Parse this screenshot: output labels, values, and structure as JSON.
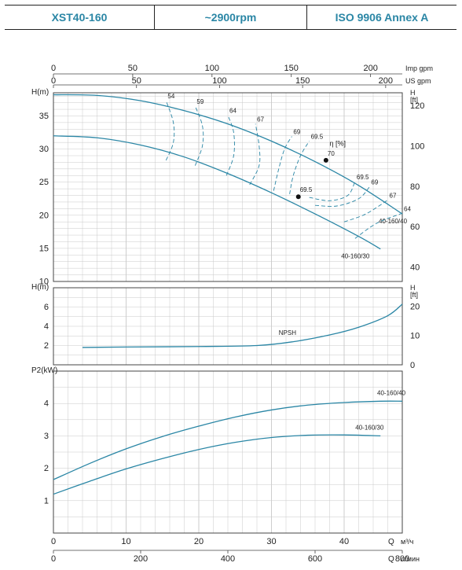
{
  "header": {
    "model": "XST40-160",
    "speed": "~2900rpm",
    "standard": "ISO 9906   Annex A"
  },
  "colors": {
    "curve": "#2a86a5",
    "grid": "#c9c9c9",
    "axis": "#444444",
    "text": "#222222"
  },
  "top_axes": {
    "imp_gpm": {
      "label": "Imp gpm",
      "ticks": [
        0,
        50,
        100,
        150,
        200
      ],
      "max": 220
    },
    "us_gpm": {
      "label": "US gpm",
      "ticks": [
        0,
        50,
        100,
        150,
        200
      ],
      "max": 210
    }
  },
  "bottom_axes": {
    "m3h": {
      "label_q": "Q",
      "label_unit": "м³/ч",
      "ticks": [
        0,
        10,
        20,
        30,
        40
      ]
    },
    "lmin": {
      "label_q": "Q",
      "label_unit": "л/мин",
      "ticks": [
        0,
        200,
        400,
        600,
        800
      ]
    }
  },
  "chart_data": [
    {
      "type": "line",
      "name": "head",
      "ylabel": "H(m)",
      "y2label": "H",
      "y2unit": "[ft]",
      "xlim": [
        0,
        48
      ],
      "ylim": [
        10,
        38.5
      ],
      "yticks": [
        10,
        15,
        20,
        25,
        30,
        35
      ],
      "y2ticks": [
        40,
        60,
        80,
        100,
        120
      ],
      "grid": true,
      "series": [
        {
          "name": "40-160/40",
          "x": [
            0,
            6,
            12,
            18,
            24,
            30,
            36,
            42,
            48
          ],
          "y": [
            38.2,
            38.1,
            37.3,
            35.8,
            33.8,
            31.2,
            28.1,
            24.5,
            20.2
          ]
        },
        {
          "name": "40-160/30",
          "x": [
            0,
            6,
            12,
            18,
            24,
            30,
            36,
            42,
            45
          ],
          "y": [
            32.0,
            31.7,
            30.6,
            28.8,
            26.3,
            23.4,
            20.2,
            16.8,
            14.9
          ]
        }
      ],
      "efficiency_label": "η [%]",
      "efficiency_curves": [
        {
          "label": "54",
          "x": [
            15.5,
            16.5,
            16.5,
            15.5
          ],
          "y": [
            28.3,
            31,
            34,
            37.3
          ]
        },
        {
          "label": "59",
          "x": [
            19.5,
            20.5,
            20.5,
            19.5
          ],
          "y": [
            27.5,
            30.5,
            33.5,
            36.5
          ]
        },
        {
          "label": "64",
          "x": [
            23.8,
            24.8,
            24.8,
            24
          ],
          "y": [
            26,
            29,
            32.5,
            35.1
          ]
        },
        {
          "label": "67",
          "x": [
            27,
            28.3,
            28.3,
            27.8
          ],
          "y": [
            24.6,
            27.5,
            30.5,
            33.8
          ]
        },
        {
          "label": "69",
          "x": [
            30.3,
            31,
            31.8,
            32.8
          ],
          "y": [
            23.7,
            27,
            30,
            31.9
          ]
        },
        {
          "label": "69.5",
          "x": [
            32.5,
            33,
            34,
            35.2
          ],
          "y": [
            23.2,
            26,
            29,
            31.2
          ]
        },
        {
          "label": "69.5",
          "x": [
            35.2,
            38,
            40.5,
            41.5
          ],
          "y": [
            22.7,
            22.2,
            23,
            25.1
          ]
        },
        {
          "label": "69",
          "x": [
            36,
            39,
            42,
            43.5
          ],
          "y": [
            21.5,
            21.4,
            22.5,
            24.3
          ]
        },
        {
          "label": "67",
          "x": [
            40,
            43,
            46
          ],
          "y": [
            19,
            20.2,
            22.3
          ]
        },
        {
          "label": "64",
          "x": [
            41.5,
            44.5,
            48
          ],
          "y": [
            16.5,
            18.8,
            20.3
          ]
        }
      ],
      "efficiency_peak": [
        {
          "label": "70",
          "x": 37.5,
          "y": 28.3
        },
        {
          "label": "69.5",
          "x": 33.7,
          "y": 22.8
        }
      ]
    },
    {
      "type": "line",
      "name": "npsh",
      "ylabel": "H(m)",
      "y2label": "H",
      "y2unit": "[ft]",
      "xlim": [
        0,
        48
      ],
      "ylim": [
        0,
        8
      ],
      "yticks": [
        2,
        4,
        6
      ],
      "y2ticks": [
        0,
        10,
        20
      ],
      "grid": true,
      "series": [
        {
          "name": "NPSH",
          "x": [
            4,
            10,
            20,
            28,
            33,
            38,
            42,
            46,
            48
          ],
          "y": [
            1.8,
            1.85,
            1.9,
            2.0,
            2.4,
            3.1,
            3.9,
            5.1,
            6.3
          ]
        }
      ]
    },
    {
      "type": "line",
      "name": "power",
      "ylabel": "P2(kW)",
      "xlim": [
        0,
        48
      ],
      "ylim": [
        0,
        5
      ],
      "yticks": [
        1,
        2,
        3,
        4
      ],
      "grid": true,
      "series": [
        {
          "name": "40-160/40",
          "x": [
            0,
            5,
            10,
            15,
            20,
            25,
            30,
            35,
            40,
            45,
            48
          ],
          "y": [
            1.65,
            2.15,
            2.6,
            2.98,
            3.3,
            3.58,
            3.8,
            3.95,
            4.03,
            4.07,
            4.07
          ]
        },
        {
          "name": "40-160/30",
          "x": [
            0,
            5,
            10,
            15,
            20,
            25,
            30,
            35,
            40,
            45
          ],
          "y": [
            1.2,
            1.6,
            1.98,
            2.3,
            2.58,
            2.8,
            2.95,
            3.02,
            3.03,
            3.0
          ]
        }
      ]
    }
  ]
}
